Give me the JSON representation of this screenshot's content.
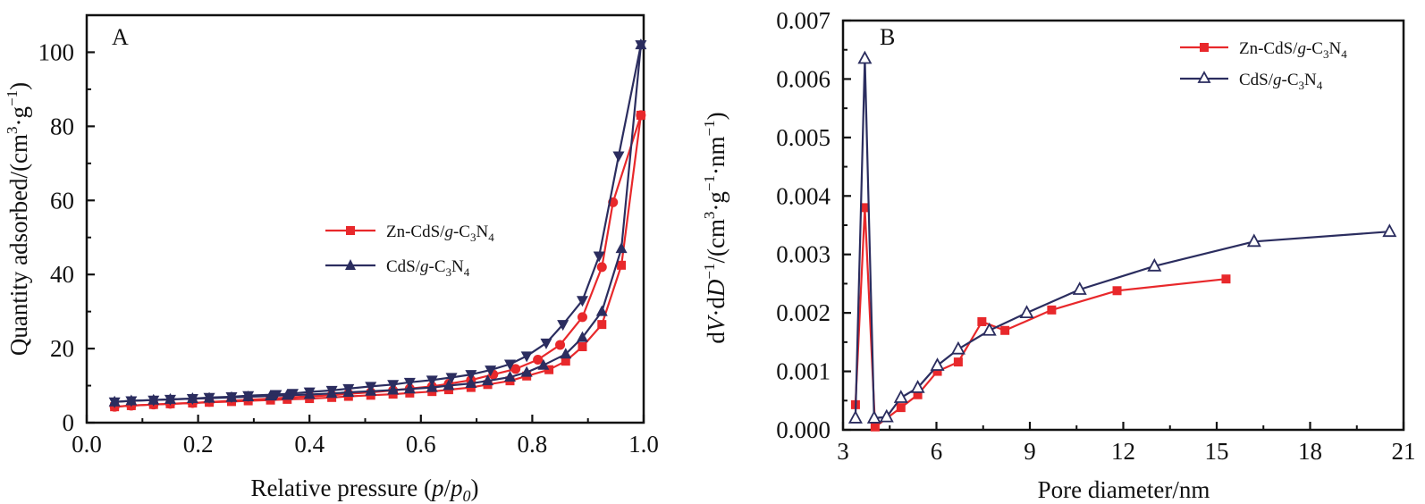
{
  "chart_data": [
    {
      "type": "line",
      "panel_label": "A",
      "title": "",
      "xlabel_main": "Relative pressure (",
      "xlabel_p": "p",
      "xlabel_slash": "/",
      "xlabel_p0": "p",
      "xlabel_sub": "0",
      "xlabel_close": ")",
      "ylabel_main": "Quantity adsorbed/(cm",
      "ylabel_sup1": "3",
      "ylabel_mid": "·g",
      "ylabel_sup2": "−1",
      "ylabel_close": ")",
      "xlim": [
        0.0,
        1.0
      ],
      "ylim": [
        0,
        110
      ],
      "xticks": [
        0.0,
        0.2,
        0.4,
        0.6,
        0.8,
        1.0
      ],
      "xtick_labels": [
        "0.0",
        "0.2",
        "0.4",
        "0.6",
        "0.8",
        "1.0"
      ],
      "yticks": [
        0,
        20,
        40,
        60,
        80,
        100
      ],
      "ytick_labels": [
        "0",
        "20",
        "40",
        "60",
        "80",
        "100"
      ],
      "grid": false,
      "legend_position": "center-right",
      "legend": [
        {
          "name": "Zn-CdS/",
          "italic": "g",
          "rest": "-C",
          "sub1": "3",
          "rest2": "N",
          "sub2": "4",
          "color": "#e8282b",
          "marker": "square"
        },
        {
          "name": "CdS/",
          "italic": "g",
          "rest": "-C",
          "sub1": "3",
          "rest2": "N",
          "sub2": "4",
          "color": "#2b2d5f",
          "marker": "triangle-up"
        }
      ],
      "series": [
        {
          "name": "Zn-CdS/g-C3N4 adsorption",
          "color": "#e8282b",
          "marker": "square",
          "x": [
            0.05,
            0.08,
            0.12,
            0.15,
            0.19,
            0.22,
            0.26,
            0.29,
            0.33,
            0.36,
            0.4,
            0.44,
            0.47,
            0.51,
            0.55,
            0.58,
            0.62,
            0.65,
            0.69,
            0.72,
            0.76,
            0.79,
            0.83,
            0.86,
            0.89,
            0.925,
            0.96,
            0.995
          ],
          "y": [
            4.3,
            4.6,
            4.9,
            5.1,
            5.3,
            5.5,
            5.7,
            5.9,
            6.1,
            6.3,
            6.5,
            6.8,
            7.1,
            7.4,
            7.7,
            8.0,
            8.4,
            8.9,
            9.5,
            10.3,
            11.3,
            12.6,
            14.3,
            16.6,
            20.5,
            26.5,
            42.5,
            83.0
          ]
        },
        {
          "name": "Zn-CdS/g-C3N4 desorption",
          "color": "#e8282b",
          "marker": "circle",
          "x": [
            0.995,
            0.945,
            0.925,
            0.89,
            0.85,
            0.81,
            0.77,
            0.73,
            0.69,
            0.65,
            0.62,
            0.58,
            0.55,
            0.51,
            0.47,
            0.44,
            0.4,
            0.36,
            0.33,
            0.29,
            0.26,
            0.22,
            0.19,
            0.15,
            0.12,
            0.08,
            0.05
          ],
          "y": [
            83.0,
            59.5,
            42.0,
            28.5,
            21.0,
            17.0,
            14.5,
            13.0,
            11.5,
            10.5,
            9.8,
            9.2,
            8.7,
            8.2,
            7.8,
            7.4,
            7.1,
            6.8,
            6.5,
            6.2,
            5.9,
            5.6,
            5.3,
            5.1,
            4.9,
            4.6,
            4.3
          ]
        },
        {
          "name": "CdS/g-C3N4 adsorption",
          "color": "#2b2d5f",
          "marker": "triangle-up",
          "x": [
            0.05,
            0.08,
            0.12,
            0.15,
            0.19,
            0.22,
            0.26,
            0.29,
            0.33,
            0.36,
            0.4,
            0.44,
            0.47,
            0.51,
            0.55,
            0.58,
            0.62,
            0.65,
            0.69,
            0.72,
            0.76,
            0.79,
            0.82,
            0.86,
            0.89,
            0.925,
            0.96,
            0.995
          ],
          "y": [
            5.6,
            5.9,
            6.1,
            6.3,
            6.5,
            6.6,
            6.8,
            7.0,
            7.2,
            7.4,
            7.6,
            7.9,
            8.2,
            8.5,
            8.8,
            9.1,
            9.5,
            10.0,
            10.6,
            11.3,
            12.3,
            13.6,
            15.5,
            18.5,
            23.0,
            30.0,
            47.0,
            102.0
          ]
        },
        {
          "name": "CdS/g-C3N4 desorption",
          "color": "#2b2d5f",
          "marker": "triangle-down",
          "x": [
            0.995,
            0.955,
            0.92,
            0.89,
            0.855,
            0.825,
            0.79,
            0.76,
            0.725,
            0.69,
            0.655,
            0.62,
            0.58,
            0.55,
            0.51,
            0.47,
            0.44,
            0.4,
            0.37,
            0.34,
            0.29,
            0.26,
            0.22,
            0.19,
            0.15,
            0.12,
            0.08,
            0.05
          ],
          "y": [
            102.0,
            72.0,
            45.0,
            33.0,
            26.5,
            21.5,
            18.0,
            15.8,
            14.2,
            13.0,
            12.2,
            11.5,
            10.9,
            10.3,
            9.8,
            9.2,
            8.7,
            8.3,
            7.9,
            7.6,
            7.3,
            7.0,
            6.8,
            6.5,
            6.3,
            6.1,
            5.9,
            5.6
          ]
        }
      ]
    },
    {
      "type": "line",
      "panel_label": "B",
      "title": "",
      "xlabel": "Pore diameter/nm",
      "ylabel_d1": "d",
      "ylabel_V": "V",
      "ylabel_d2": "·d",
      "ylabel_D": "D",
      "ylabel_sup0": "−1",
      "ylabel_main": "/(cm",
      "ylabel_sup1": "3",
      "ylabel_mid": "·g",
      "ylabel_sup2": "−1",
      "ylabel_mid2": "·nm",
      "ylabel_sup3": "−1",
      "ylabel_close": ")",
      "xlim": [
        3,
        21
      ],
      "ylim": [
        0.0,
        0.007
      ],
      "xticks": [
        3,
        6,
        9,
        12,
        15,
        18,
        21
      ],
      "xtick_labels": [
        "3",
        "6",
        "9",
        "12",
        "15",
        "18",
        "21"
      ],
      "yticks": [
        0.0,
        0.001,
        0.002,
        0.003,
        0.004,
        0.005,
        0.006,
        0.007
      ],
      "ytick_labels": [
        "0.000",
        "0.001",
        "0.002",
        "0.003",
        "0.004",
        "0.005",
        "0.006",
        "0.007"
      ],
      "grid": false,
      "legend_position": "top-right",
      "legend": [
        {
          "name": "Zn-CdS/",
          "italic": "g",
          "rest": "-C",
          "sub1": "3",
          "rest2": "N",
          "sub2": "4",
          "color": "#e8282b",
          "marker": "square"
        },
        {
          "name": "CdS/",
          "italic": "g",
          "rest": "-C",
          "sub1": "3",
          "rest2": "N",
          "sub2": "4",
          "color": "#2b2d5f",
          "marker": "triangle-open"
        }
      ],
      "series": [
        {
          "name": "Zn-CdS/g-C3N4",
          "color": "#e8282b",
          "marker": "square",
          "x": [
            3.4,
            3.7,
            4.03,
            4.86,
            5.4,
            6.03,
            6.7,
            7.46,
            8.2,
            9.7,
            11.8,
            15.3
          ],
          "y": [
            0.00043,
            0.0038,
            5e-05,
            0.00038,
            0.0006,
            0.001,
            0.00116,
            0.00185,
            0.0017,
            0.00205,
            0.00238,
            0.00258
          ]
        },
        {
          "name": "CdS/g-C3N4",
          "color": "#2b2d5f",
          "marker": "triangle-open",
          "x": [
            3.4,
            3.7,
            4.0,
            4.4,
            4.86,
            5.4,
            6.03,
            6.7,
            7.7,
            8.9,
            10.6,
            13.0,
            16.2,
            20.55
          ],
          "y": [
            0.0002,
            0.00635,
            0.0002,
            0.00022,
            0.00055,
            0.00072,
            0.0011,
            0.00138,
            0.0017,
            0.002,
            0.0024,
            0.0028,
            0.00322,
            0.00339
          ]
        }
      ]
    }
  ]
}
